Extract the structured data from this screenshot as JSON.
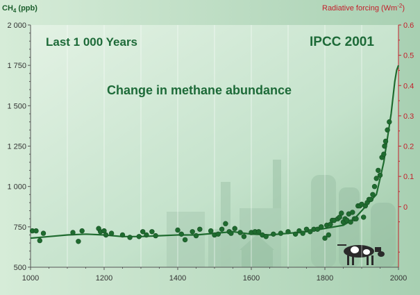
{
  "chart_data": {
    "type": "scatter",
    "title": "Change in methane abundance",
    "annotations": [
      "Last 1 000 Years",
      "IPCC 2001"
    ],
    "ylabel_left": "CH4 (ppb)",
    "ylabel_right": "Radiative forcing (Wm-2)",
    "xlim": [
      1000,
      2000
    ],
    "ylim_left": [
      500,
      2000
    ],
    "ylim_right": [
      -0.2,
      0.6
    ],
    "x_ticks": [
      "1000",
      "1200",
      "1400",
      "1600",
      "1800",
      "2000"
    ],
    "y_ticks_left": [
      "2 000",
      "1 750",
      "1 500",
      "1 250",
      "1 000",
      "750",
      "500"
    ],
    "y_ticks_right": [
      "0.6",
      "0.5",
      "0.4",
      "0.3",
      "0.2",
      "0.1",
      "0"
    ],
    "grid": true,
    "colors": {
      "points": "#1f6b2f",
      "line": "#1f6b2f",
      "left_axis": "#1b5e2c",
      "right_axis": "#c41e2a",
      "plot_bg": "#bfe0c8"
    },
    "series": [
      {
        "kind": "points",
        "x": [
          1005,
          1015,
          1025,
          1035,
          1115,
          1130,
          1140,
          1185,
          1190,
          1200,
          1205,
          1220,
          1250,
          1270,
          1295,
          1305,
          1315,
          1330,
          1340,
          1400,
          1410,
          1420,
          1440,
          1450,
          1460,
          1490,
          1500,
          1510,
          1520,
          1530,
          1540,
          1545,
          1555,
          1570,
          1580,
          1600,
          1610,
          1620,
          1630,
          1640,
          1660,
          1680,
          1700,
          1720,
          1730,
          1740,
          1750,
          1760,
          1770,
          1780,
          1790,
          1800,
          1805,
          1810,
          1815,
          1820,
          1825,
          1835,
          1840,
          1845,
          1850,
          1855,
          1860,
          1865,
          1870,
          1875,
          1880,
          1885,
          1890,
          1895,
          1900,
          1905,
          1910,
          1915,
          1920,
          1925,
          1930,
          1935,
          1940,
          1945,
          1950,
          1955,
          1960,
          1962,
          1965,
          1970,
          1975
        ],
        "y": [
          725,
          725,
          665,
          710,
          715,
          660,
          725,
          740,
          720,
          725,
          700,
          710,
          700,
          685,
          690,
          720,
          700,
          720,
          695,
          730,
          705,
          670,
          720,
          695,
          735,
          725,
          700,
          705,
          735,
          770,
          720,
          710,
          740,
          715,
          690,
          715,
          720,
          720,
          700,
          690,
          705,
          710,
          720,
          705,
          725,
          710,
          735,
          720,
          735,
          735,
          750,
          680,
          760,
          700,
          765,
          790,
          790,
          800,
          810,
          835,
          780,
          800,
          790,
          830,
          780,
          840,
          800,
          800,
          880,
          880,
          890,
          810,
          880,
          900,
          920,
          920,
          950,
          1000,
          1050,
          1100,
          1070,
          1180,
          1200,
          1250,
          1280,
          1350,
          1400
        ]
      },
      {
        "kind": "line",
        "x": [
          1000,
          1050,
          1100,
          1150,
          1200,
          1250,
          1300,
          1350,
          1400,
          1450,
          1500,
          1550,
          1600,
          1650,
          1700,
          1750,
          1800,
          1850,
          1880,
          1900,
          1920,
          1940,
          1960,
          1970,
          1980,
          1990,
          1995,
          2000
        ],
        "y": [
          680,
          690,
          700,
          705,
          700,
          690,
          690,
          695,
          700,
          700,
          710,
          720,
          705,
          700,
          710,
          720,
          740,
          760,
          800,
          850,
          900,
          950,
          1150,
          1300,
          1450,
          1650,
          1720,
          1750
        ]
      }
    ]
  }
}
